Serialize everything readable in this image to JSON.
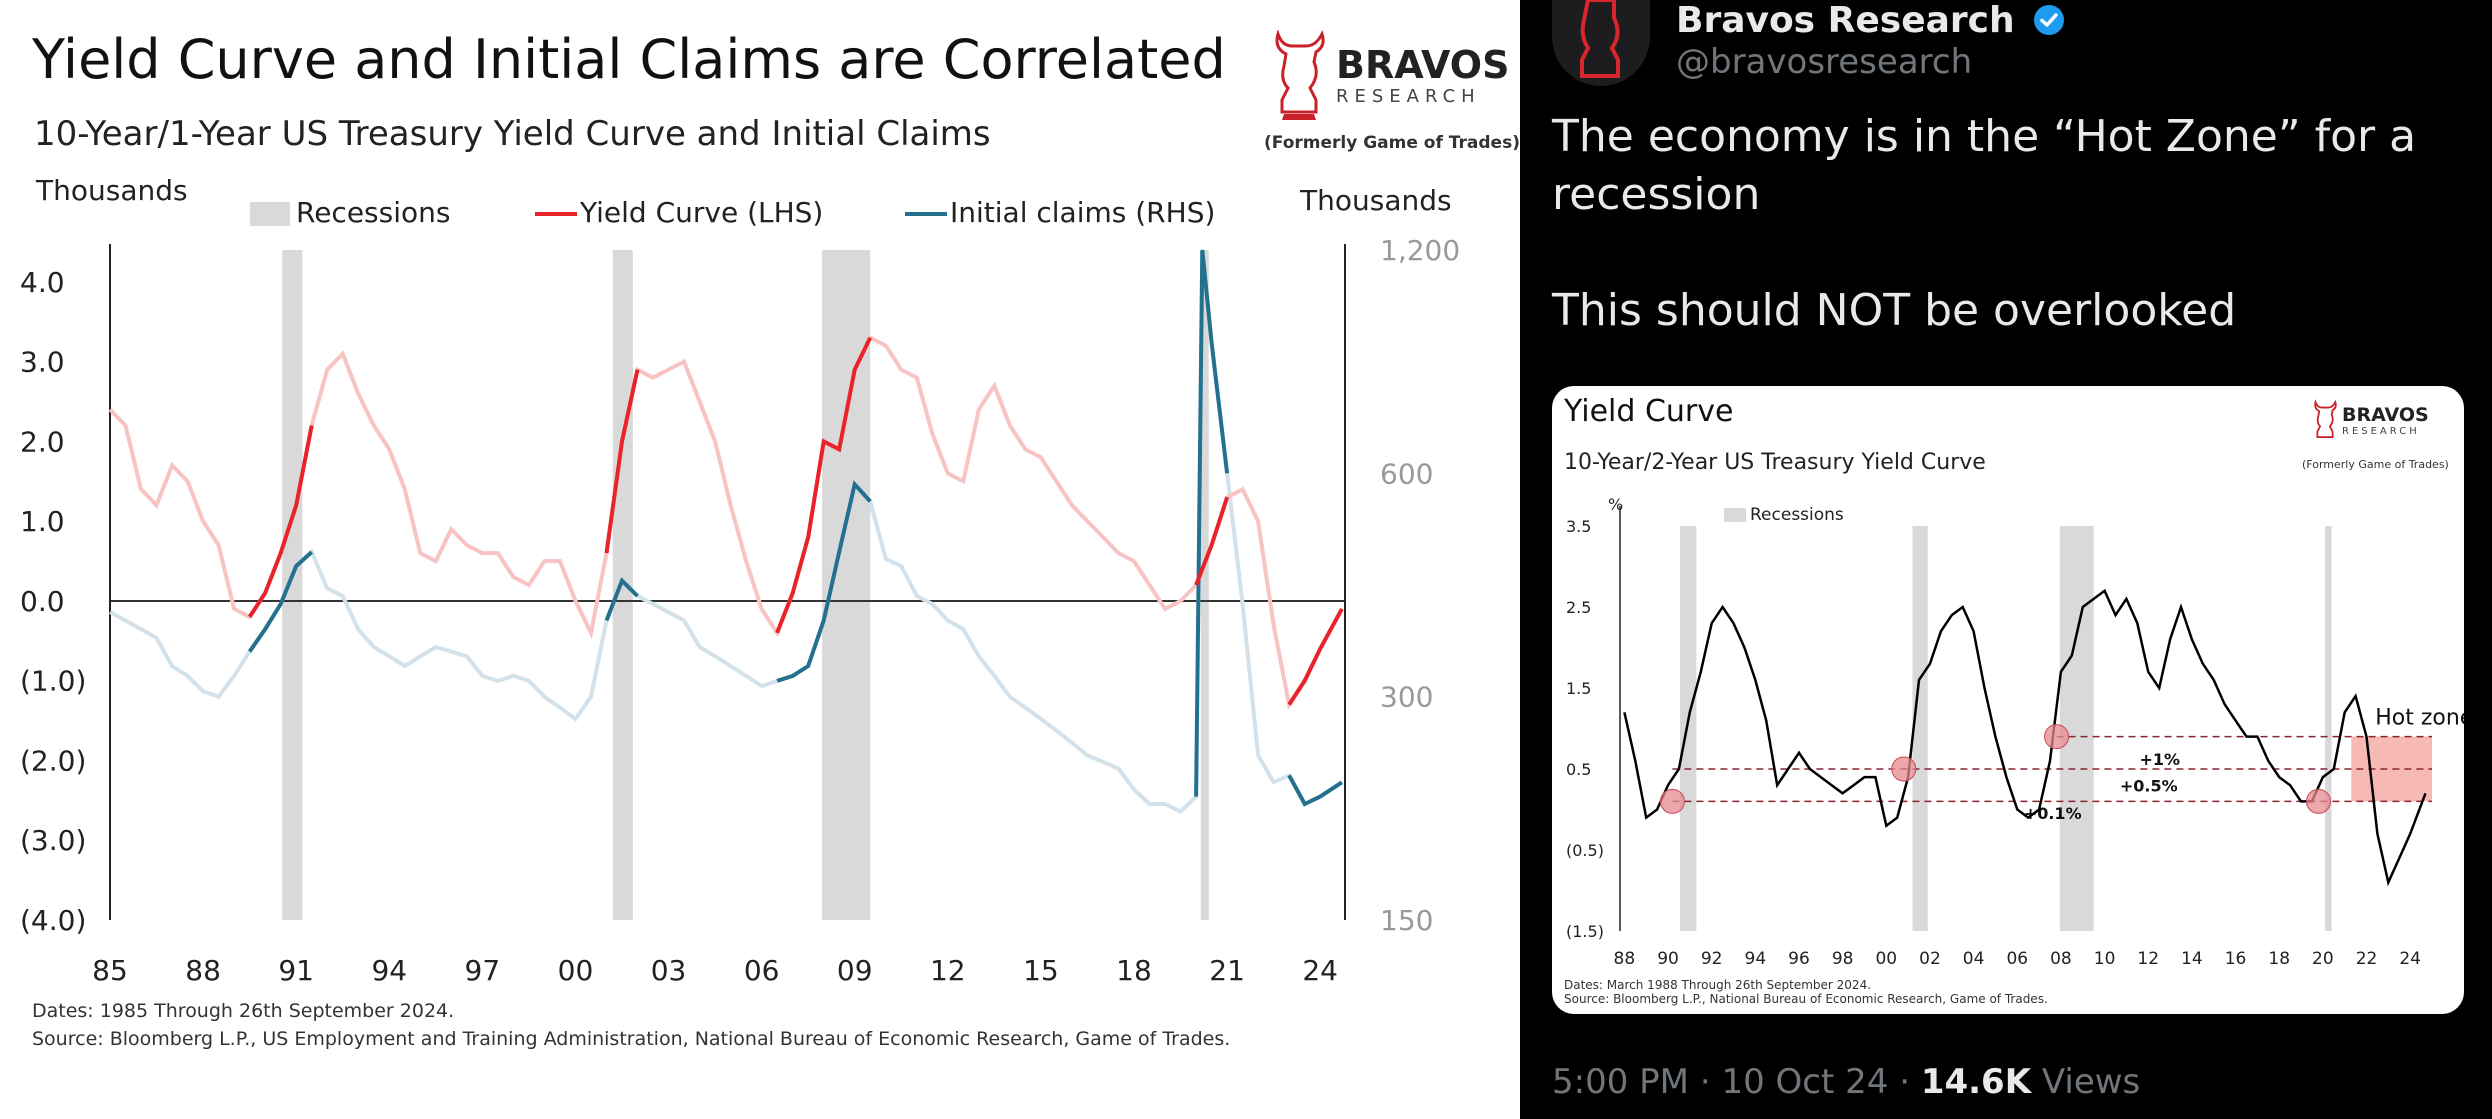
{
  "left_chart": {
    "title": "Yield Curve and Initial Claims are Correlated",
    "subtitle": "10-Year/1-Year US Treasury Yield Curve and Initial Claims",
    "logo": {
      "name": "BRAVOS",
      "sub": "RESEARCH",
      "note": "(Formerly Game of Trades)"
    },
    "notes": [
      "Dates: 1985 Through 26th September 2024.",
      "Source: Bloomberg L.P., US Employment and Training Administration, National Bureau of Economic Research, Game of Trades."
    ]
  },
  "tweet": {
    "account_name": "Bravos Research",
    "handle": "@bravosresearch",
    "text": "The economy is in the “Hot Zone” for a recession\n\nThis should NOT be overlooked",
    "time": "5:00 PM",
    "date": "10 Oct 24",
    "views_count": "14.6K",
    "views_label": "Views",
    "separator": "·"
  },
  "card": {
    "title": "Yield Curve",
    "subtitle": "10-Year/2-Year US Treasury Yield Curve",
    "logo": {
      "name": "BRAVOS",
      "sub": "RESEARCH",
      "note": "(Formerly Game of Trades)"
    },
    "notes": [
      "Dates: March 1988 Through 26th September 2024.",
      "Source: Bloomberg L.P., National Bureau of Economic Research, Game of Trades."
    ]
  },
  "colors": {
    "yield_red": "#e8232a",
    "yield_faded": "#f7c3c3",
    "claims_blue": "#23708f",
    "claims_faded": "#d3e1ea",
    "recession_grey": "#d9d9d9",
    "hot_zone": "#f6b9b3"
  },
  "chart_data": [
    {
      "type": "line",
      "title": "Yield Curve and Initial Claims are Correlated",
      "subtitle": "10-Year/1-Year US Treasury Yield Curve and Initial Claims",
      "x_ticks": [
        "85",
        "88",
        "91",
        "94",
        "97",
        "00",
        "03",
        "06",
        "09",
        "12",
        "15",
        "18",
        "21",
        "24"
      ],
      "xlim": [
        1985,
        2024.8
      ],
      "y_left": {
        "label": "Thousands",
        "ticks": [
          "4.0",
          "3.0",
          "2.0",
          "1.0",
          "0.0",
          "(1.0)",
          "(2.0)",
          "(3.0)",
          "(4.0)"
        ],
        "lim": [
          -4,
          4.4
        ]
      },
      "y_right": {
        "label": "Thousands",
        "ticks": [
          "1,200",
          "600",
          "300",
          "150"
        ],
        "tick_values": [
          1200,
          600,
          300,
          150
        ],
        "scale": "log",
        "lim": [
          150,
          1200
        ]
      },
      "legend": {
        "position": "top",
        "entries": [
          "Recessions",
          "Yield Curve (LHS)",
          "Initial claims (RHS)"
        ]
      },
      "recessions": [
        [
          1990.55,
          1991.2
        ],
        [
          2001.2,
          2001.85
        ],
        [
          2007.95,
          2009.5
        ],
        [
          2020.15,
          2020.4
        ]
      ],
      "series": [
        {
          "name": "Yield Curve (LHS)",
          "axis": "left",
          "x": [
            1985,
            1985.5,
            1986,
            1986.5,
            1987,
            1987.5,
            1988,
            1988.5,
            1989,
            1989.5,
            1990,
            1990.5,
            1991,
            1991.5,
            1992,
            1992.5,
            1993,
            1993.5,
            1994,
            1994.5,
            1995,
            1995.5,
            1996,
            1996.5,
            1997,
            1997.5,
            1998,
            1998.5,
            1999,
            1999.5,
            2000,
            2000.5,
            2001,
            2001.5,
            2002,
            2002.5,
            2003,
            2003.5,
            2004,
            2004.5,
            2005,
            2005.5,
            2006,
            2006.5,
            2007,
            2007.5,
            2008,
            2008.5,
            2009,
            2009.5,
            2010,
            2010.5,
            2011,
            2011.5,
            2012,
            2012.5,
            2013,
            2013.5,
            2014,
            2014.5,
            2015,
            2015.5,
            2016,
            2016.5,
            2017,
            2017.5,
            2018,
            2018.5,
            2019,
            2019.5,
            2020,
            2020.5,
            2021,
            2021.5,
            2022,
            2022.5,
            2023,
            2023.5,
            2024,
            2024.7
          ],
          "values": [
            2.4,
            2.2,
            1.4,
            1.2,
            1.7,
            1.5,
            1.0,
            0.7,
            -0.1,
            -0.2,
            0.1,
            0.6,
            1.2,
            2.2,
            2.9,
            3.1,
            2.6,
            2.2,
            1.9,
            1.4,
            0.6,
            0.5,
            0.9,
            0.7,
            0.6,
            0.6,
            0.3,
            0.2,
            0.5,
            0.5,
            0.0,
            -0.4,
            0.6,
            2.0,
            2.9,
            2.8,
            2.9,
            3.0,
            2.5,
            2.0,
            1.2,
            0.5,
            -0.1,
            -0.4,
            0.1,
            0.8,
            2.0,
            1.9,
            2.9,
            3.3,
            3.2,
            2.9,
            2.8,
            2.1,
            1.6,
            1.5,
            2.4,
            2.7,
            2.2,
            1.9,
            1.8,
            1.5,
            1.2,
            1.0,
            0.8,
            0.6,
            0.5,
            0.2,
            -0.1,
            0.0,
            0.2,
            0.7,
            1.3,
            1.4,
            1.0,
            -0.3,
            -1.3,
            -1.0,
            -0.6,
            -0.1
          ],
          "highlight_ranges": [
            [
              1989.2,
              1991.5
            ],
            [
              2000.7,
              2002.2
            ],
            [
              2006.5,
              2009.7
            ],
            [
              2019.6,
              2021.2
            ],
            [
              2023.0,
              2024.7
            ]
          ]
        },
        {
          "name": "Initial claims (RHS)",
          "axis": "right",
          "x": [
            1985,
            1985.5,
            1986,
            1986.5,
            1987,
            1987.5,
            1988,
            1988.5,
            1989,
            1989.5,
            1990,
            1990.5,
            1991,
            1991.5,
            1992,
            1992.5,
            1993,
            1993.5,
            1994,
            1994.5,
            1995,
            1995.5,
            1996,
            1996.5,
            1997,
            1997.5,
            1998,
            1998.5,
            1999,
            1999.5,
            2000,
            2000.5,
            2001,
            2001.5,
            2002,
            2002.5,
            2003,
            2003.5,
            2004,
            2004.5,
            2005,
            2005.5,
            2006,
            2006.5,
            2007,
            2007.5,
            2008,
            2008.5,
            2009,
            2009.5,
            2010,
            2010.5,
            2011,
            2011.5,
            2012,
            2012.5,
            2013,
            2013.5,
            2014,
            2014.5,
            2015,
            2015.5,
            2016,
            2016.5,
            2017,
            2017.5,
            2018,
            2018.5,
            2019,
            2019.5,
            2020,
            2020.2,
            2020.5,
            2021,
            2021.5,
            2022,
            2022.5,
            2023,
            2023.5,
            2024,
            2024.7
          ],
          "values": [
            390,
            380,
            370,
            360,
            330,
            320,
            305,
            300,
            320,
            345,
            370,
            400,
            450,
            470,
            420,
            410,
            370,
            350,
            340,
            330,
            340,
            350,
            345,
            340,
            320,
            315,
            320,
            315,
            300,
            290,
            280,
            300,
            380,
            430,
            410,
            400,
            390,
            380,
            350,
            340,
            330,
            320,
            310,
            315,
            320,
            330,
            380,
            470,
            580,
            550,
            460,
            450,
            410,
            400,
            380,
            370,
            340,
            320,
            300,
            290,
            280,
            270,
            260,
            250,
            245,
            240,
            225,
            215,
            215,
            210,
            220,
            1200,
            900,
            600,
            400,
            250,
            230,
            235,
            215,
            220,
            230
          ]
        }
      ]
    },
    {
      "type": "line",
      "title": "Yield Curve",
      "subtitle": "10-Year/2-Year US Treasury Yield Curve",
      "x_ticks": [
        "88",
        "90",
        "92",
        "94",
        "96",
        "98",
        "00",
        "02",
        "04",
        "06",
        "08",
        "10",
        "12",
        "14",
        "16",
        "18",
        "20",
        "22",
        "24"
      ],
      "xlim": [
        1987.8,
        2025
      ],
      "y": {
        "label": "%",
        "ticks": [
          "3.5",
          "2.5",
          "1.5",
          "0.5",
          "(0.5)",
          "(1.5)"
        ],
        "lim": [
          -1.5,
          3.5
        ]
      },
      "legend": {
        "position": "top-left",
        "entries": [
          "Recessions"
        ]
      },
      "recessions": [
        [
          1990.55,
          1991.3
        ],
        [
          2001.2,
          2001.9
        ],
        [
          2007.95,
          2009.5
        ],
        [
          2020.1,
          2020.4
        ]
      ],
      "annotations": [
        {
          "text": "Hot zone",
          "range": [
            0.1,
            0.9
          ]
        },
        {
          "text": "+1%",
          "level": 0.9
        },
        {
          "text": "+0.5%",
          "level": 0.5
        },
        {
          "text": "+0.1%",
          "level": 0.1
        }
      ],
      "markers": [
        [
          1990.2,
          0.1
        ],
        [
          2000.8,
          0.5
        ],
        [
          2007.8,
          0.9
        ],
        [
          2019.8,
          0.1
        ]
      ],
      "series": [
        {
          "name": "10-Year/2-Year",
          "x": [
            1988,
            1988.5,
            1989,
            1989.5,
            1990,
            1990.5,
            1991,
            1991.5,
            1992,
            1992.5,
            1993,
            1993.5,
            1994,
            1994.5,
            1995,
            1995.5,
            1996,
            1996.5,
            1997,
            1997.5,
            1998,
            1998.5,
            1999,
            1999.5,
            2000,
            2000.5,
            2001,
            2001.5,
            2002,
            2002.5,
            2003,
            2003.5,
            2004,
            2004.5,
            2005,
            2005.5,
            2006,
            2006.5,
            2007,
            2007.5,
            2008,
            2008.5,
            2009,
            2009.5,
            2010,
            2010.5,
            2011,
            2011.5,
            2012,
            2012.5,
            2013,
            2013.5,
            2014,
            2014.5,
            2015,
            2015.5,
            2016,
            2016.5,
            2017,
            2017.5,
            2018,
            2018.5,
            2019,
            2019.5,
            2020,
            2020.5,
            2021,
            2021.5,
            2022,
            2022.5,
            2023,
            2023.5,
            2024,
            2024.7
          ],
          "values": [
            1.2,
            0.6,
            -0.1,
            0.0,
            0.3,
            0.5,
            1.2,
            1.7,
            2.3,
            2.5,
            2.3,
            2.0,
            1.6,
            1.1,
            0.3,
            0.5,
            0.7,
            0.5,
            0.4,
            0.3,
            0.2,
            0.3,
            0.4,
            0.4,
            -0.2,
            -0.1,
            0.4,
            1.6,
            1.8,
            2.2,
            2.4,
            2.5,
            2.2,
            1.5,
            0.9,
            0.4,
            0.0,
            -0.1,
            0.0,
            0.6,
            1.7,
            1.9,
            2.5,
            2.6,
            2.7,
            2.4,
            2.6,
            2.3,
            1.7,
            1.5,
            2.1,
            2.5,
            2.1,
            1.8,
            1.6,
            1.3,
            1.1,
            0.9,
            0.9,
            0.6,
            0.4,
            0.3,
            0.1,
            0.1,
            0.4,
            0.5,
            1.2,
            1.4,
            0.9,
            -0.3,
            -0.9,
            -0.6,
            -0.3,
            0.2
          ]
        }
      ]
    }
  ]
}
